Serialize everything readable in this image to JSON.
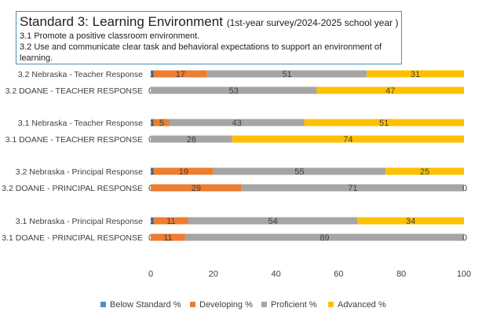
{
  "title": {
    "main": "Standard 3: Learning Environment",
    "sub": "(1st-year survey/2024-2025 school year )",
    "line1": "3.1 Promote a positive classroom environment.",
    "line2": "3.2 Use and communicate clear task and behavioral expectations to support an environment of",
    "line3": "learning."
  },
  "colors": {
    "below": "#4e90c8",
    "developing": "#ed7d31",
    "proficient": "#a5a5a5",
    "advanced": "#ffc000"
  },
  "chart_data": {
    "type": "bar",
    "orientation": "horizontal",
    "stacked": true,
    "categories": [
      "3.2 Nebraska - Teacher Response",
      "3.2 DOANE - TEACHER RESPONSE",
      "3.1 Nebraska - Teacher Response",
      "3.1 DOANE - TEACHER RESPONSE",
      "3.2 Nebraska - Principal Response",
      "3.2  DOANE  - PRINCIPAL RESPONSE",
      "3.1 Nebraska - Principal Response",
      "3.1 DOANE  - PRINCIPAL RESPONSE"
    ],
    "series": [
      {
        "name": "Below Standard %",
        "values": [
          1,
          0,
          1,
          0,
          1,
          0,
          1,
          0
        ],
        "labels": [
          "1",
          "0",
          "1",
          "0",
          "1",
          "0",
          "1",
          "0"
        ]
      },
      {
        "name": "Developing %",
        "values": [
          17,
          0,
          5,
          0,
          19,
          29,
          11,
          11
        ],
        "labels": [
          "17",
          "",
          "5",
          "",
          "19",
          "29",
          "11",
          "11"
        ]
      },
      {
        "name": "Proficient %",
        "values": [
          51,
          53,
          43,
          26,
          55,
          71,
          54,
          89
        ],
        "labels": [
          "51",
          "53",
          "43",
          "26",
          "55",
          "71",
          "54",
          "89"
        ]
      },
      {
        "name": "Advanced %",
        "values": [
          31,
          47,
          51,
          74,
          25,
          0,
          34,
          0
        ],
        "labels": [
          "31",
          "47",
          "51",
          "74",
          "25",
          "0",
          "34",
          "0"
        ]
      }
    ],
    "xlim": [
      0,
      100
    ],
    "xticks": [
      "0",
      "20",
      "40",
      "60",
      "80",
      "100"
    ],
    "legend_position": "bottom",
    "grid": false
  }
}
